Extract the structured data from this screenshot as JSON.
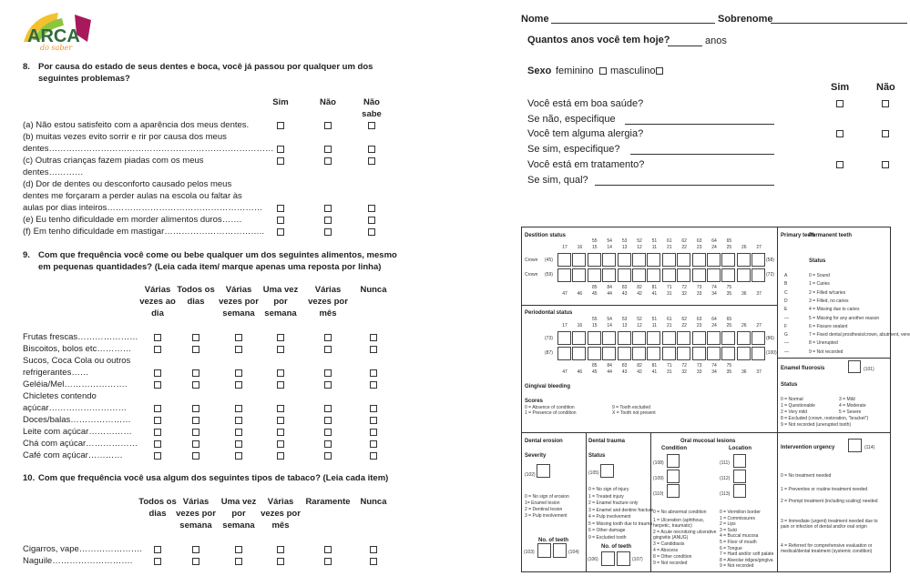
{
  "logo": {
    "text": "ARCA",
    "subtext": "do saber",
    "colors": [
      "#f2c12e",
      "#8cc63f",
      "#a8195b",
      "#2f6b3a",
      "#e8952a"
    ]
  },
  "q8": {
    "number": "8.",
    "text1": "Por causa do estado de seus dentes e boca, você já passou por qualquer um dos",
    "text2": "seguintes problemas?",
    "columns": [
      "Sim",
      "Não",
      "Não sabe"
    ],
    "rows": [
      {
        "lines": [
          "(a) Não estou satisfeito com a aparência dos meus dentes."
        ]
      },
      {
        "lines": [
          "(b) muitas vezes evito sorrir e rir por causa dos meus",
          "dentes……………………………………………………………………"
        ]
      },
      {
        "lines": [
          "(c) Outras crianças fazem piadas com os meus",
          "dentes…………"
        ],
        "first": true
      },
      {
        "lines": [
          "(d) Dor de dentes ou desconforto causado pelos meus",
          "dentes me forçaram a perder aulas na escola ou faltar às",
          "aulas por dias inteiros………………………………………………"
        ]
      },
      {
        "lines": [
          "(e) Eu tenho dificuldade em morder alimentos duros……."
        ]
      },
      {
        "lines": [
          "(f) Em tenho dificuldade em mastigar…………………………….."
        ]
      }
    ]
  },
  "q9": {
    "number": "9.",
    "text1": "Com que frequência você come ou bebe qualquer um dos seguintes alimentos, mesmo",
    "text2": "em pequenas quantidades? (Leia cada item/ marque apenas uma reposta por linha)",
    "columns": [
      "Várias vezes ao dia",
      "Todos os dias",
      "Várias vezes por semana",
      "Uma vez por semana",
      "Várias vezes por mês",
      "Nunca"
    ],
    "rows": [
      {
        "lines": [
          "Frutas frescas…………………"
        ]
      },
      {
        "lines": [
          "Biscoitos, bolos etc…………"
        ]
      },
      {
        "lines": [
          "Sucos, Coca Cola ou outros",
          "refrigerantes……"
        ]
      },
      {
        "lines": [
          "Geléia/Mel…………………."
        ]
      },
      {
        "lines": [
          "Chicletes contendo",
          "açúcar………………………"
        ]
      },
      {
        "lines": [
          "Doces/balas…………………"
        ]
      },
      {
        "lines": [
          "Leite com açúcar……………"
        ]
      },
      {
        "lines": [
          "Chá com açúcar………………"
        ]
      },
      {
        "lines": [
          "Café com açúcar…………"
        ]
      }
    ]
  },
  "q10": {
    "number": "10.",
    "text": "Com que frequência você usa algum dos seguintes tipos de tabaco?  (Leia cada item)",
    "columns": [
      "Todos os dias",
      "Várias vezes por semana",
      "Uma vez por semana",
      "Várias vezes por mês",
      "Raramente",
      "Nunca"
    ],
    "rows": [
      {
        "lines": [
          "Cigarros, vape…………………."
        ]
      },
      {
        "lines": [
          "Naguile………………………."
        ]
      }
    ]
  },
  "right": {
    "nome": "Nome",
    "sobrenome": "Sobrenome",
    "age_q": "Quantos anos você tem hoje?",
    "age_unit": "anos",
    "sexo": "Sexo",
    "fem": "feminino",
    "masc": "masculino",
    "sim": "Sim",
    "nao": "Não",
    "health": [
      {
        "text": "Você está em boa saúde?",
        "check": true
      },
      {
        "text": "Se não, especifique",
        "check": false
      },
      {
        "text": "Você tem alguma alergia?",
        "check": true
      },
      {
        "text": "Se sim, especifique?",
        "check": false
      },
      {
        "text": "Você está em tratamento?",
        "check": true
      },
      {
        "text": "Se sim, qual?",
        "check": false
      }
    ]
  },
  "dental": {
    "dentition_title": "Destition status",
    "periodontal_title": "Periodontal status",
    "upper_primary": [
      "55",
      "54",
      "53",
      "52",
      "51",
      "61",
      "62",
      "63",
      "64",
      "65"
    ],
    "upper_perm": [
      "17",
      "16",
      "15",
      "14",
      "13",
      "12",
      "11",
      "21",
      "22",
      "23",
      "24",
      "25",
      "26",
      "27"
    ],
    "lower_primary": [
      "85",
      "84",
      "83",
      "82",
      "81",
      "71",
      "72",
      "73",
      "74",
      "75"
    ],
    "lower_perm": [
      "47",
      "46",
      "45",
      "44",
      "43",
      "42",
      "41",
      "31",
      "32",
      "33",
      "34",
      "35",
      "36",
      "37"
    ],
    "crown": "Crown",
    "c1l": "(45)",
    "c1r": "(58)",
    "c2l": "(59)",
    "c2r": "(72)",
    "p1l": "(73)",
    "p1r": "(86)",
    "p2l": "(87)",
    "p2r": "(100)",
    "gingival": "Gingival bleeding",
    "scores": "Scores",
    "score_items": [
      "0 = Absence of condition",
      "1 = Presence of condition",
      "9 = Tooth excluded",
      "X = Tooth not present"
    ],
    "primary": "Primary teeth",
    "permanent": "Permanent teeth",
    "status": "Status",
    "status_items": [
      [
        "A",
        "0 = Sound"
      ],
      [
        "B",
        "1 = Caries"
      ],
      [
        "C",
        "2 = Filled w/caries"
      ],
      [
        "D",
        "3 = Filled, no caries"
      ],
      [
        "E",
        "4 = Missing due to caries"
      ],
      [
        "—",
        "5 = Missing for any another reason"
      ],
      [
        "F",
        "6 = Fissure sealant"
      ],
      [
        "G",
        "7 = Fixed dental prosthesis/crown, abutment, veneer"
      ],
      [
        "—",
        "8 = Unerupted"
      ],
      [
        "—",
        "9 = Not recorded"
      ]
    ],
    "fluorosis": "Enamel fluorosis",
    "fluorosis_code": "(101)",
    "fl_status": "Status",
    "fl_items": [
      "0 = Normal",
      "1 = Questionable",
      "2 = Very mild",
      "3 = Mild",
      "4 = Moderate",
      "5 = Severe",
      "8 = Excluded (crown, restoration, \"bracket\")",
      "9 = Not recorded (unerupted tooth)"
    ],
    "erosion": "Dental erosion",
    "severity": "Severity",
    "er_code": "(102)",
    "er_items": [
      "0 = No sign of erosion",
      "1= Enamel lesion",
      "2 = Dentinal lesion",
      "3 = Pulp involvement"
    ],
    "no_teeth": "No. of teeth",
    "er_n1": "(103)",
    "er_n2": "(104)",
    "trauma": "Dental trauma",
    "tr_status": "Status",
    "tr_code": "(105)",
    "tr_items": [
      "0 =   No sign of injury",
      "1 =   Treated injury",
      "2 =   Enamel fracture only",
      "3 =   Enamel and  dentine fracture",
      "4 =   Pulp involvement",
      "5 =   Missing tooth due to trauma",
      "6 =   Other damage",
      "9 =   Excluded tooth"
    ],
    "tr_n1": "(106)",
    "tr_n2": "(107)",
    "mucosal": "Oral mucosal lesions",
    "condition": "Condition",
    "location": "Location",
    "cond_codes": [
      "(108)",
      "(109)",
      "(110)"
    ],
    "loc_codes": [
      "(111)",
      "(112)",
      "(113)"
    ],
    "cond_items": [
      "0 = No abnormal condition",
      "1 = Ulceration (aphthous, herpetic, traumatic)",
      "2 = Acute necrotizing ulcerative gingivitis  (ANUG)",
      "3 = Candidiasis",
      "4 = Abscess",
      "8 = Other condition",
      "9 = Not recorded"
    ],
    "loc_items": [
      "0 = Vermilion border",
      "1 = Commissures",
      "2 = Lips",
      "3 = Sulci",
      "4 = Buccal mucosa",
      "5 = Floor of mouth",
      "6 = Tongue",
      "7 = Hard and/or soft palate",
      "8 = Alveolar ridges/gingiva",
      "9 = Not recorded"
    ],
    "urgency": "Intervention urgency",
    "urg_code": "(114)",
    "urg_items": [
      "0 =  No treatment needed",
      "1 =  Preventive or routine treatment needed",
      "2 =  Prompt treatment (including scaling) needed",
      "3 =  Immediate (urgent) treatment needed due to pain or infection of dental and/or oral origin",
      "4 =  Referred for comprehensive evaluation or medical/dental treatment (systemic condition)"
    ]
  }
}
